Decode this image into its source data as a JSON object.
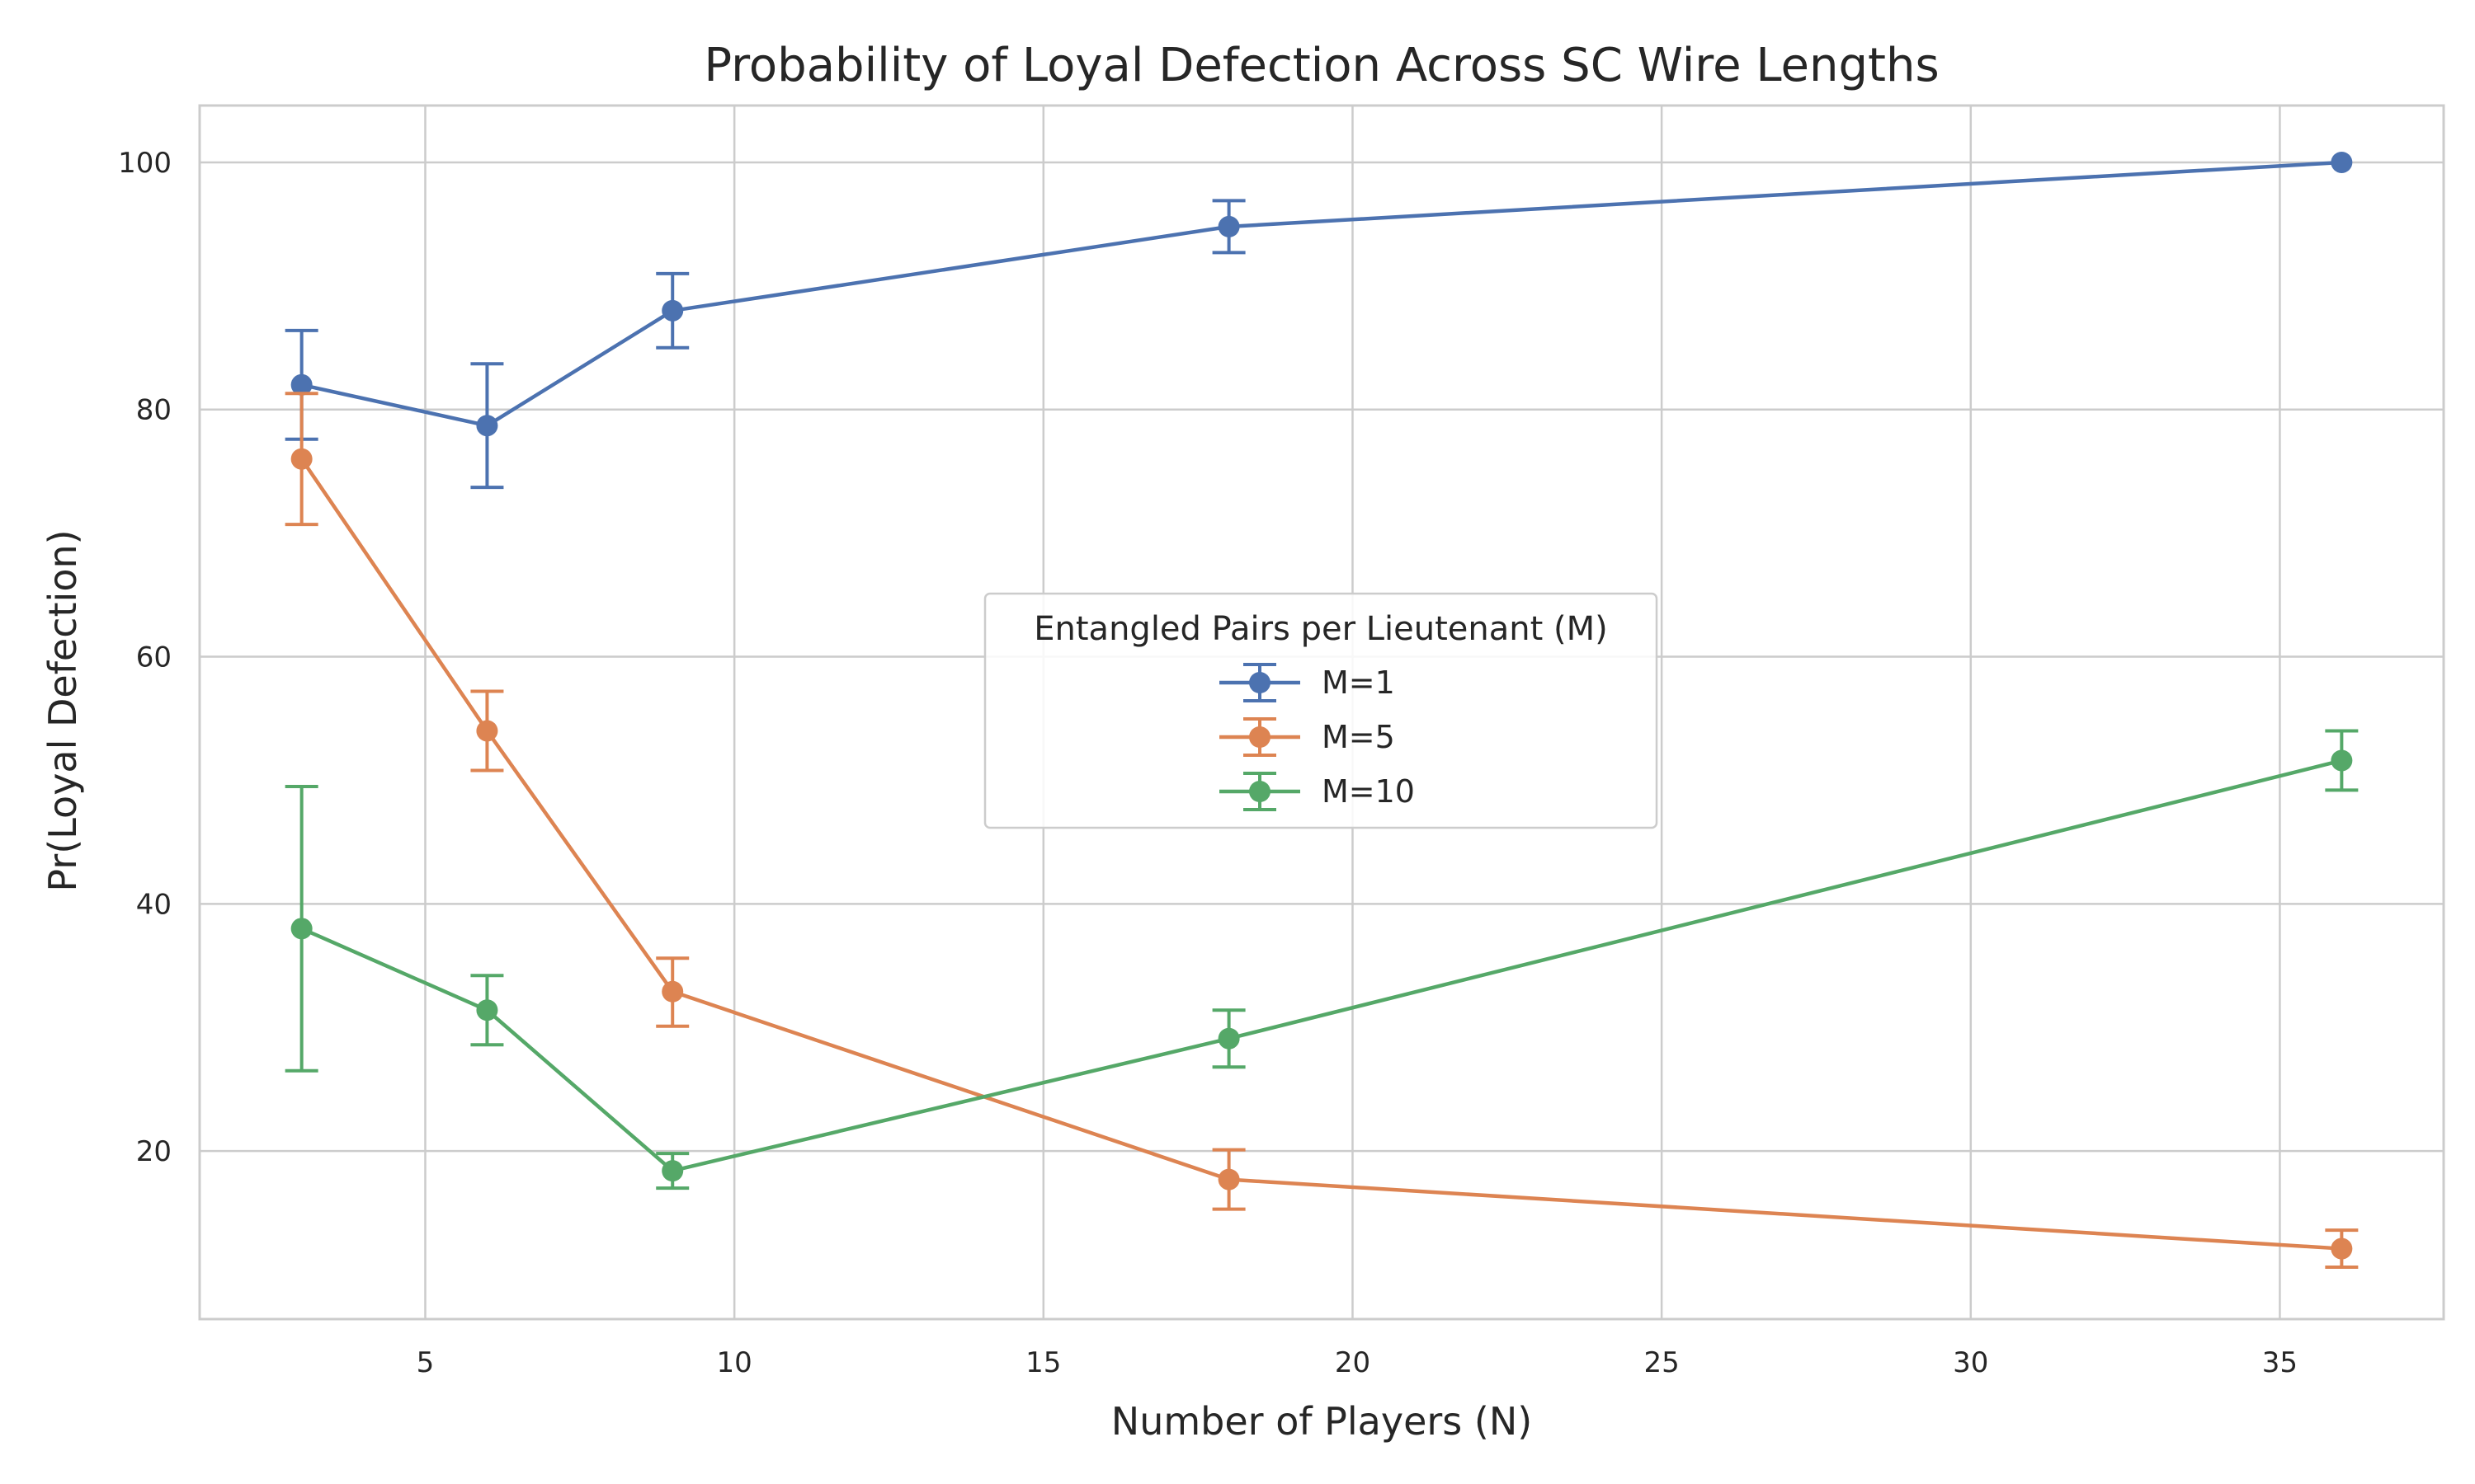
{
  "chart_data": {
    "type": "line",
    "title": "Probability of Loyal Defection Across SC Wire Lengths",
    "xlabel": "Number of Players (N)",
    "ylabel": "Pr(Loyal Defection)",
    "xlim": [
      1.35,
      37.65
    ],
    "ylim": [
      6.4,
      104.6
    ],
    "xticks": [
      5,
      10,
      15,
      20,
      25,
      30,
      35
    ],
    "yticks": [
      20,
      40,
      60,
      80,
      100
    ],
    "grid": true,
    "legend": {
      "title": "Entangled Pairs per Lieutenant (M)",
      "position": "center"
    },
    "x": [
      3,
      6,
      9,
      18,
      36
    ],
    "series": [
      {
        "name": "M=1",
        "color": "#4c72b0",
        "values": [
          82.0,
          78.7,
          88.0,
          94.8,
          100.0
        ],
        "err_low": [
          77.6,
          73.7,
          85.0,
          92.7,
          100.0
        ],
        "err_high": [
          86.4,
          83.7,
          91.0,
          96.9,
          100.0
        ]
      },
      {
        "name": "M=5",
        "color": "#dd8452",
        "values": [
          76.0,
          54.0,
          32.9,
          17.7,
          12.1
        ],
        "err_low": [
          70.7,
          50.8,
          30.1,
          15.3,
          10.6
        ],
        "err_high": [
          81.3,
          57.2,
          35.6,
          20.1,
          13.6
        ]
      },
      {
        "name": "M=10",
        "color": "#55a868",
        "values": [
          38.0,
          31.4,
          18.4,
          29.1,
          51.6
        ],
        "err_low": [
          26.5,
          28.6,
          17.0,
          26.8,
          49.2
        ],
        "err_high": [
          49.5,
          34.2,
          19.8,
          31.4,
          54.0
        ]
      }
    ]
  }
}
